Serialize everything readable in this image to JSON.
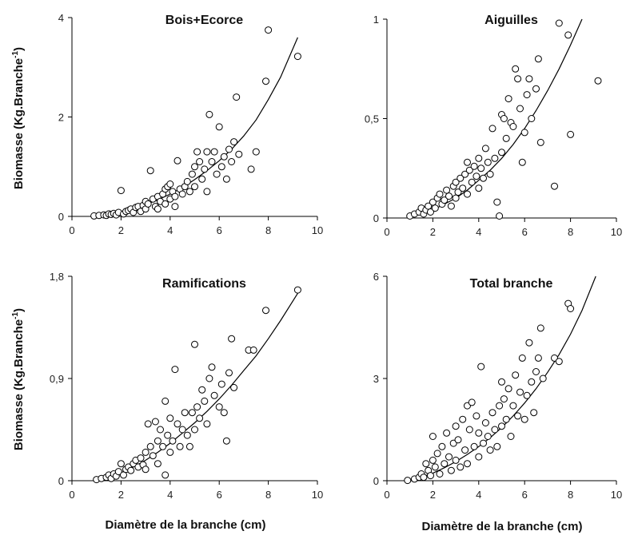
{
  "figure": {
    "ylabel_left": "Biomasse (Kg.Branche",
    "ylabel_sup": "-1",
    "ylabel_close": ")",
    "xlabel": "Diamètre de la branche (cm)"
  },
  "chart_data": [
    {
      "type": "scatter",
      "title": "Bois+Ecorce",
      "xlim": [
        0,
        10
      ],
      "ylim": [
        0,
        4
      ],
      "xticks": [
        0,
        2,
        4,
        6,
        8,
        10
      ],
      "xtick_labels": [
        "0",
        "2",
        "4",
        "6",
        "8",
        "10"
      ],
      "yticks": [
        0,
        2,
        4
      ],
      "ytick_labels": [
        "0",
        "2",
        "4"
      ],
      "fit_curve": {
        "x": [
          0.9,
          1.5,
          2,
          2.5,
          3,
          3.5,
          4,
          4.5,
          5,
          5.5,
          6,
          6.5,
          7,
          7.5,
          8,
          8.5,
          9.2
        ],
        "y": [
          0,
          0.04,
          0.09,
          0.16,
          0.24,
          0.33,
          0.45,
          0.58,
          0.74,
          0.92,
          1.12,
          1.35,
          1.62,
          1.94,
          2.35,
          2.8,
          3.6
        ]
      },
      "points": [
        [
          0.9,
          0.01
        ],
        [
          1.1,
          0.02
        ],
        [
          1.3,
          0.03
        ],
        [
          1.4,
          0.02
        ],
        [
          1.5,
          0.05
        ],
        [
          1.6,
          0.04
        ],
        [
          1.7,
          0.06
        ],
        [
          1.8,
          0.03
        ],
        [
          1.9,
          0.08
        ],
        [
          2.0,
          0.52
        ],
        [
          2.1,
          0.05
        ],
        [
          2.2,
          0.1
        ],
        [
          2.3,
          0.12
        ],
        [
          2.4,
          0.15
        ],
        [
          2.5,
          0.08
        ],
        [
          2.6,
          0.18
        ],
        [
          2.7,
          0.2
        ],
        [
          2.8,
          0.1
        ],
        [
          2.9,
          0.22
        ],
        [
          3.0,
          0.15
        ],
        [
          3.0,
          0.3
        ],
        [
          3.1,
          0.25
        ],
        [
          3.2,
          0.92
        ],
        [
          3.3,
          0.35
        ],
        [
          3.4,
          0.2
        ],
        [
          3.5,
          0.4
        ],
        [
          3.5,
          0.15
        ],
        [
          3.6,
          0.3
        ],
        [
          3.7,
          0.45
        ],
        [
          3.8,
          0.55
        ],
        [
          3.8,
          0.25
        ],
        [
          3.9,
          0.6
        ],
        [
          4.0,
          0.35
        ],
        [
          4.0,
          0.65
        ],
        [
          4.1,
          0.5
        ],
        [
          4.2,
          0.4
        ],
        [
          4.2,
          0.2
        ],
        [
          4.3,
          1.12
        ],
        [
          4.4,
          0.55
        ],
        [
          4.5,
          0.45
        ],
        [
          4.6,
          0.6
        ],
        [
          4.7,
          0.7
        ],
        [
          4.8,
          0.5
        ],
        [
          4.9,
          0.85
        ],
        [
          5.0,
          1.0
        ],
        [
          5.0,
          0.6
        ],
        [
          5.1,
          1.3
        ],
        [
          5.2,
          1.1
        ],
        [
          5.3,
          0.75
        ],
        [
          5.4,
          0.95
        ],
        [
          5.5,
          1.3
        ],
        [
          5.5,
          0.5
        ],
        [
          5.6,
          2.05
        ],
        [
          5.7,
          1.1
        ],
        [
          5.8,
          1.3
        ],
        [
          5.9,
          0.85
        ],
        [
          6.0,
          1.8
        ],
        [
          6.1,
          1.0
        ],
        [
          6.2,
          1.2
        ],
        [
          6.3,
          0.75
        ],
        [
          6.4,
          1.35
        ],
        [
          6.5,
          1.1
        ],
        [
          6.6,
          1.5
        ],
        [
          6.7,
          2.4
        ],
        [
          6.8,
          1.25
        ],
        [
          7.3,
          0.95
        ],
        [
          7.5,
          1.3
        ],
        [
          7.9,
          2.72
        ],
        [
          8.0,
          3.75
        ],
        [
          9.2,
          3.22
        ]
      ]
    },
    {
      "type": "scatter",
      "title": "Aiguilles",
      "xlim": [
        0,
        10
      ],
      "ylim": [
        0,
        1
      ],
      "xticks": [
        0,
        2,
        4,
        6,
        8,
        10
      ],
      "xtick_labels": [
        "0",
        "2",
        "4",
        "6",
        "8",
        "10"
      ],
      "yticks": [
        0,
        0.5,
        1
      ],
      "ytick_labels": [
        "0",
        "0,5",
        "1"
      ],
      "fit_curve": {
        "x": [
          0.9,
          1.5,
          2,
          2.5,
          3,
          3.5,
          4,
          4.5,
          5,
          5.5,
          6,
          6.5,
          7,
          7.5,
          8,
          8.5
        ],
        "y": [
          0,
          0.02,
          0.04,
          0.07,
          0.1,
          0.14,
          0.19,
          0.24,
          0.3,
          0.37,
          0.45,
          0.54,
          0.64,
          0.75,
          0.87,
          1.0
        ]
      },
      "points": [
        [
          1.0,
          0.01
        ],
        [
          1.2,
          0.02
        ],
        [
          1.4,
          0.03
        ],
        [
          1.5,
          0.05
        ],
        [
          1.6,
          0.02
        ],
        [
          1.7,
          0.04
        ],
        [
          1.8,
          0.06
        ],
        [
          1.9,
          0.03
        ],
        [
          2.0,
          0.08
        ],
        [
          2.1,
          0.05
        ],
        [
          2.2,
          0.1
        ],
        [
          2.3,
          0.12
        ],
        [
          2.4,
          0.07
        ],
        [
          2.5,
          0.09
        ],
        [
          2.6,
          0.14
        ],
        [
          2.7,
          0.11
        ],
        [
          2.8,
          0.06
        ],
        [
          2.9,
          0.16
        ],
        [
          3.0,
          0.1
        ],
        [
          3.0,
          0.18
        ],
        [
          3.1,
          0.13
        ],
        [
          3.2,
          0.2
        ],
        [
          3.3,
          0.15
        ],
        [
          3.4,
          0.22
        ],
        [
          3.5,
          0.12
        ],
        [
          3.5,
          0.28
        ],
        [
          3.6,
          0.24
        ],
        [
          3.7,
          0.18
        ],
        [
          3.8,
          0.26
        ],
        [
          3.9,
          0.21
        ],
        [
          4.0,
          0.15
        ],
        [
          4.0,
          0.3
        ],
        [
          4.1,
          0.25
        ],
        [
          4.2,
          0.2
        ],
        [
          4.3,
          0.35
        ],
        [
          4.4,
          0.28
        ],
        [
          4.5,
          0.22
        ],
        [
          4.6,
          0.45
        ],
        [
          4.7,
          0.3
        ],
        [
          4.8,
          0.08
        ],
        [
          4.9,
          0.01
        ],
        [
          5.0,
          0.52
        ],
        [
          5.0,
          0.33
        ],
        [
          5.1,
          0.5
        ],
        [
          5.2,
          0.4
        ],
        [
          5.3,
          0.6
        ],
        [
          5.4,
          0.48
        ],
        [
          5.5,
          0.46
        ],
        [
          5.6,
          0.75
        ],
        [
          5.7,
          0.7
        ],
        [
          5.8,
          0.55
        ],
        [
          5.9,
          0.28
        ],
        [
          6.0,
          0.43
        ],
        [
          6.1,
          0.62
        ],
        [
          6.2,
          0.7
        ],
        [
          6.3,
          0.5
        ],
        [
          6.5,
          0.65
        ],
        [
          6.6,
          0.8
        ],
        [
          6.7,
          0.38
        ],
        [
          7.3,
          0.16
        ],
        [
          7.5,
          0.98
        ],
        [
          7.9,
          0.92
        ],
        [
          8.0,
          0.42
        ],
        [
          9.2,
          0.69
        ]
      ]
    },
    {
      "type": "scatter",
      "title": "Ramifications",
      "xlim": [
        0,
        10
      ],
      "ylim": [
        0,
        1.8
      ],
      "xticks": [
        0,
        2,
        4,
        6,
        8,
        10
      ],
      "xtick_labels": [
        "0",
        "2",
        "4",
        "6",
        "8",
        "10"
      ],
      "yticks": [
        0,
        0.9,
        1.8
      ],
      "ytick_labels": [
        "0",
        "0,9",
        "1,8"
      ],
      "fit_curve": {
        "x": [
          0.9,
          1.5,
          2,
          2.5,
          3,
          3.5,
          4,
          4.5,
          5,
          5.5,
          6,
          6.5,
          7,
          7.5,
          8,
          8.5,
          9.2
        ],
        "y": [
          0,
          0.03,
          0.07,
          0.12,
          0.18,
          0.25,
          0.33,
          0.42,
          0.51,
          0.61,
          0.72,
          0.84,
          0.97,
          1.1,
          1.25,
          1.41,
          1.65
        ]
      },
      "points": [
        [
          1.0,
          0.01
        ],
        [
          1.2,
          0.02
        ],
        [
          1.4,
          0.03
        ],
        [
          1.5,
          0.05
        ],
        [
          1.6,
          0.02
        ],
        [
          1.7,
          0.06
        ],
        [
          1.8,
          0.04
        ],
        [
          1.9,
          0.08
        ],
        [
          2.0,
          0.15
        ],
        [
          2.1,
          0.05
        ],
        [
          2.2,
          0.1
        ],
        [
          2.3,
          0.12
        ],
        [
          2.4,
          0.09
        ],
        [
          2.5,
          0.15
        ],
        [
          2.6,
          0.18
        ],
        [
          2.7,
          0.12
        ],
        [
          2.8,
          0.2
        ],
        [
          2.9,
          0.14
        ],
        [
          3.0,
          0.25
        ],
        [
          3.0,
          0.1
        ],
        [
          3.1,
          0.5
        ],
        [
          3.2,
          0.3
        ],
        [
          3.3,
          0.22
        ],
        [
          3.4,
          0.52
        ],
        [
          3.5,
          0.35
        ],
        [
          3.5,
          0.15
        ],
        [
          3.6,
          0.45
        ],
        [
          3.7,
          0.3
        ],
        [
          3.8,
          0.7
        ],
        [
          3.8,
          0.05
        ],
        [
          3.9,
          0.4
        ],
        [
          4.0,
          0.25
        ],
        [
          4.0,
          0.55
        ],
        [
          4.1,
          0.35
        ],
        [
          4.2,
          0.98
        ],
        [
          4.3,
          0.5
        ],
        [
          4.4,
          0.3
        ],
        [
          4.5,
          0.45
        ],
        [
          4.6,
          0.6
        ],
        [
          4.7,
          0.4
        ],
        [
          4.8,
          0.3
        ],
        [
          4.9,
          0.6
        ],
        [
          5.0,
          1.2
        ],
        [
          5.0,
          0.45
        ],
        [
          5.1,
          0.65
        ],
        [
          5.2,
          0.55
        ],
        [
          5.3,
          0.8
        ],
        [
          5.4,
          0.7
        ],
        [
          5.5,
          0.5
        ],
        [
          5.6,
          0.9
        ],
        [
          5.7,
          1.0
        ],
        [
          5.8,
          0.75
        ],
        [
          6.0,
          0.65
        ],
        [
          6.1,
          0.85
        ],
        [
          6.2,
          0.6
        ],
        [
          6.3,
          0.35
        ],
        [
          6.4,
          0.95
        ],
        [
          6.5,
          1.25
        ],
        [
          6.6,
          0.82
        ],
        [
          7.2,
          1.15
        ],
        [
          7.4,
          1.15
        ],
        [
          7.9,
          1.5
        ],
        [
          9.2,
          1.68
        ]
      ]
    },
    {
      "type": "scatter",
      "title": "Total branche",
      "xlim": [
        0,
        10
      ],
      "ylim": [
        0,
        6
      ],
      "xticks": [
        0,
        2,
        4,
        6,
        8,
        10
      ],
      "xtick_labels": [
        "0",
        "2",
        "4",
        "6",
        "8",
        "10"
      ],
      "yticks": [
        0,
        3,
        6
      ],
      "ytick_labels": [
        "0",
        "3",
        "6"
      ],
      "fit_curve": {
        "x": [
          0.9,
          1.5,
          2,
          2.5,
          3,
          3.5,
          4,
          4.5,
          5,
          5.5,
          6,
          6.5,
          7,
          7.5,
          8,
          8.5,
          9.1
        ],
        "y": [
          0,
          0.1,
          0.22,
          0.38,
          0.56,
          0.77,
          1.0,
          1.26,
          1.56,
          1.9,
          2.28,
          2.7,
          3.18,
          3.7,
          4.3,
          5.0,
          6.0
        ]
      },
      "points": [
        [
          0.9,
          0.01
        ],
        [
          1.2,
          0.05
        ],
        [
          1.4,
          0.1
        ],
        [
          1.5,
          0.2
        ],
        [
          1.6,
          0.1
        ],
        [
          1.7,
          0.5
        ],
        [
          1.8,
          0.3
        ],
        [
          1.9,
          0.15
        ],
        [
          2.0,
          0.6
        ],
        [
          2.0,
          1.3
        ],
        [
          2.1,
          0.4
        ],
        [
          2.2,
          0.8
        ],
        [
          2.3,
          0.2
        ],
        [
          2.4,
          1.0
        ],
        [
          2.5,
          0.5
        ],
        [
          2.6,
          1.4
        ],
        [
          2.7,
          0.7
        ],
        [
          2.8,
          0.3
        ],
        [
          2.9,
          1.1
        ],
        [
          3.0,
          0.6
        ],
        [
          3.0,
          1.6
        ],
        [
          3.1,
          1.2
        ],
        [
          3.2,
          0.4
        ],
        [
          3.3,
          1.8
        ],
        [
          3.4,
          0.9
        ],
        [
          3.5,
          2.2
        ],
        [
          3.5,
          0.5
        ],
        [
          3.6,
          1.5
        ],
        [
          3.7,
          2.3
        ],
        [
          3.8,
          1.0
        ],
        [
          3.9,
          1.9
        ],
        [
          4.0,
          0.7
        ],
        [
          4.0,
          1.4
        ],
        [
          4.1,
          3.35
        ],
        [
          4.2,
          1.1
        ],
        [
          4.3,
          1.7
        ],
        [
          4.4,
          1.3
        ],
        [
          4.5,
          0.9
        ],
        [
          4.6,
          2.0
        ],
        [
          4.7,
          1.5
        ],
        [
          4.8,
          1.0
        ],
        [
          4.9,
          2.2
        ],
        [
          5.0,
          2.9
        ],
        [
          5.0,
          1.6
        ],
        [
          5.1,
          2.4
        ],
        [
          5.2,
          1.8
        ],
        [
          5.3,
          2.7
        ],
        [
          5.4,
          1.3
        ],
        [
          5.5,
          2.2
        ],
        [
          5.6,
          3.1
        ],
        [
          5.7,
          1.9
        ],
        [
          5.8,
          2.6
        ],
        [
          5.9,
          3.6
        ],
        [
          6.0,
          1.8
        ],
        [
          6.1,
          2.5
        ],
        [
          6.2,
          4.05
        ],
        [
          6.3,
          2.9
        ],
        [
          6.4,
          2.0
        ],
        [
          6.5,
          3.2
        ],
        [
          6.6,
          3.6
        ],
        [
          6.7,
          4.48
        ],
        [
          6.8,
          3.0
        ],
        [
          7.3,
          3.6
        ],
        [
          7.5,
          3.5
        ],
        [
          7.9,
          5.2
        ],
        [
          8.0,
          5.05
        ]
      ]
    }
  ]
}
